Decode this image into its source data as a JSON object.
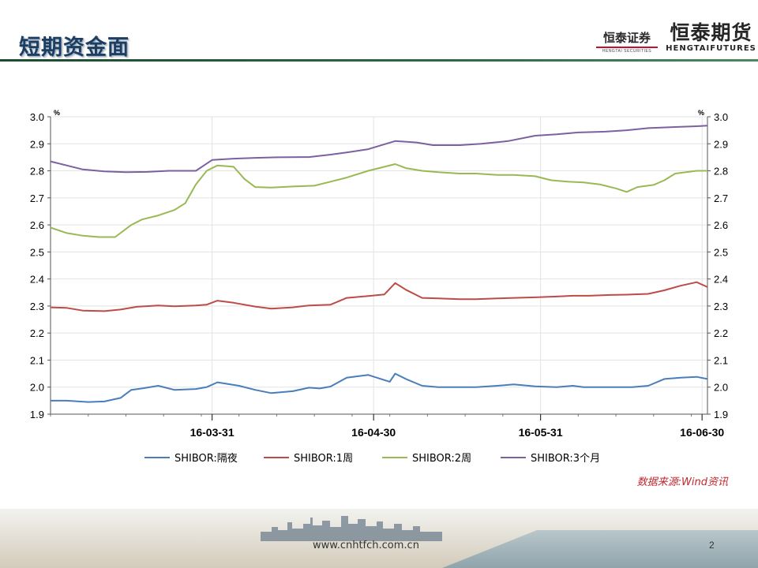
{
  "slide": {
    "title": "短期资金面",
    "logo_securities": "恒泰证券",
    "logo_securities_sub": "HENGTAI SECURITIES",
    "logo_futures": "恒泰期货",
    "logo_futures_sub": "HENGTAIFUTURES",
    "footer_url": "www.cnhtfch.com.cn",
    "page_number": "2",
    "colors": {
      "title": "#1d3e63",
      "rule": "#2d6a43",
      "source_text": "#c0272d"
    }
  },
  "chart_data": {
    "type": "line",
    "unit_left": "%",
    "unit_right": "%",
    "ylim": [
      1.9,
      3.0
    ],
    "yticks": [
      "3.0",
      "2.9",
      "2.8",
      "2.7",
      "2.6",
      "2.5",
      "2.4",
      "2.3",
      "2.2",
      "2.1",
      "2.0",
      "1.9"
    ],
    "x_range": [
      "2016-03-01",
      "2016-07-01"
    ],
    "x_major_ticks": [
      {
        "date": "2016-03-31",
        "label": "16-03-31"
      },
      {
        "date": "2016-04-30",
        "label": "16-04-30"
      },
      {
        "date": "2016-05-31",
        "label": "16-05-31"
      },
      {
        "date": "2016-06-30",
        "label": "16-06-30"
      }
    ],
    "grid": true,
    "legend_position": "bottom",
    "source_note": "数据来源:Wind资讯",
    "series": [
      {
        "name": "SHIBOR:隔夜",
        "color": "#4a7ebb",
        "points": [
          [
            "2016-03-01",
            1.95
          ],
          [
            "2016-03-04",
            1.95
          ],
          [
            "2016-03-08",
            1.945
          ],
          [
            "2016-03-11",
            1.947
          ],
          [
            "2016-03-14",
            1.96
          ],
          [
            "2016-03-16",
            1.99
          ],
          [
            "2016-03-18",
            1.995
          ],
          [
            "2016-03-21",
            2.005
          ],
          [
            "2016-03-24",
            1.99
          ],
          [
            "2016-03-28",
            1.993
          ],
          [
            "2016-03-30",
            2.0
          ],
          [
            "2016-04-01",
            2.018
          ],
          [
            "2016-04-05",
            2.005
          ],
          [
            "2016-04-08",
            1.99
          ],
          [
            "2016-04-11",
            1.978
          ],
          [
            "2016-04-15",
            1.985
          ],
          [
            "2016-04-18",
            1.998
          ],
          [
            "2016-04-20",
            1.995
          ],
          [
            "2016-04-22",
            2.002
          ],
          [
            "2016-04-25",
            2.035
          ],
          [
            "2016-04-27",
            2.04
          ],
          [
            "2016-04-29",
            2.045
          ],
          [
            "2016-05-03",
            2.02
          ],
          [
            "2016-05-04",
            2.05
          ],
          [
            "2016-05-06",
            2.03
          ],
          [
            "2016-05-09",
            2.005
          ],
          [
            "2016-05-12",
            2.0
          ],
          [
            "2016-05-16",
            2.0
          ],
          [
            "2016-05-19",
            2.0
          ],
          [
            "2016-05-23",
            2.005
          ],
          [
            "2016-05-26",
            2.01
          ],
          [
            "2016-05-30",
            2.003
          ],
          [
            "2016-06-03",
            2.0
          ],
          [
            "2016-06-06",
            2.005
          ],
          [
            "2016-06-08",
            2.0
          ],
          [
            "2016-06-13",
            2.0
          ],
          [
            "2016-06-17",
            2.0
          ],
          [
            "2016-06-20",
            2.005
          ],
          [
            "2016-06-23",
            2.03
          ],
          [
            "2016-06-26",
            2.035
          ],
          [
            "2016-06-29",
            2.038
          ],
          [
            "2016-07-01",
            2.03
          ]
        ]
      },
      {
        "name": "SHIBOR:1周",
        "color": "#be4b48",
        "points": [
          [
            "2016-03-01",
            2.295
          ],
          [
            "2016-03-04",
            2.293
          ],
          [
            "2016-03-07",
            2.283
          ],
          [
            "2016-03-11",
            2.281
          ],
          [
            "2016-03-14",
            2.287
          ],
          [
            "2016-03-17",
            2.297
          ],
          [
            "2016-03-21",
            2.302
          ],
          [
            "2016-03-24",
            2.299
          ],
          [
            "2016-03-28",
            2.302
          ],
          [
            "2016-03-30",
            2.305
          ],
          [
            "2016-04-01",
            2.32
          ],
          [
            "2016-04-04",
            2.312
          ],
          [
            "2016-04-08",
            2.298
          ],
          [
            "2016-04-11",
            2.29
          ],
          [
            "2016-04-15",
            2.295
          ],
          [
            "2016-04-18",
            2.302
          ],
          [
            "2016-04-22",
            2.305
          ],
          [
            "2016-04-25",
            2.33
          ],
          [
            "2016-04-29",
            2.337
          ],
          [
            "2016-05-02",
            2.343
          ],
          [
            "2016-05-04",
            2.385
          ],
          [
            "2016-05-06",
            2.36
          ],
          [
            "2016-05-09",
            2.33
          ],
          [
            "2016-05-12",
            2.328
          ],
          [
            "2016-05-16",
            2.325
          ],
          [
            "2016-05-19",
            2.325
          ],
          [
            "2016-05-23",
            2.328
          ],
          [
            "2016-05-26",
            2.33
          ],
          [
            "2016-05-30",
            2.332
          ],
          [
            "2016-06-03",
            2.335
          ],
          [
            "2016-06-06",
            2.338
          ],
          [
            "2016-06-09",
            2.338
          ],
          [
            "2016-06-13",
            2.341
          ],
          [
            "2016-06-16",
            2.342
          ],
          [
            "2016-06-20",
            2.345
          ],
          [
            "2016-06-23",
            2.358
          ],
          [
            "2016-06-26",
            2.375
          ],
          [
            "2016-06-29",
            2.388
          ],
          [
            "2016-07-01",
            2.37
          ]
        ]
      },
      {
        "name": "SHIBOR:2周",
        "color": "#98b954",
        "points": [
          [
            "2016-03-01",
            2.59
          ],
          [
            "2016-03-04",
            2.57
          ],
          [
            "2016-03-07",
            2.56
          ],
          [
            "2016-03-10",
            2.555
          ],
          [
            "2016-03-13",
            2.555
          ],
          [
            "2016-03-16",
            2.6
          ],
          [
            "2016-03-18",
            2.62
          ],
          [
            "2016-03-21",
            2.635
          ],
          [
            "2016-03-24",
            2.655
          ],
          [
            "2016-03-26",
            2.68
          ],
          [
            "2016-03-28",
            2.75
          ],
          [
            "2016-03-30",
            2.8
          ],
          [
            "2016-04-01",
            2.82
          ],
          [
            "2016-04-04",
            2.815
          ],
          [
            "2016-04-06",
            2.77
          ],
          [
            "2016-04-08",
            2.74
          ],
          [
            "2016-04-11",
            2.738
          ],
          [
            "2016-04-15",
            2.742
          ],
          [
            "2016-04-19",
            2.745
          ],
          [
            "2016-04-22",
            2.76
          ],
          [
            "2016-04-25",
            2.775
          ],
          [
            "2016-04-29",
            2.8
          ],
          [
            "2016-05-04",
            2.825
          ],
          [
            "2016-05-06",
            2.81
          ],
          [
            "2016-05-09",
            2.8
          ],
          [
            "2016-05-12",
            2.795
          ],
          [
            "2016-05-16",
            2.79
          ],
          [
            "2016-05-19",
            2.79
          ],
          [
            "2016-05-23",
            2.785
          ],
          [
            "2016-05-26",
            2.785
          ],
          [
            "2016-05-30",
            2.78
          ],
          [
            "2016-06-02",
            2.765
          ],
          [
            "2016-06-05",
            2.76
          ],
          [
            "2016-06-08",
            2.757
          ],
          [
            "2016-06-11",
            2.75
          ],
          [
            "2016-06-14",
            2.735
          ],
          [
            "2016-06-16",
            2.722
          ],
          [
            "2016-06-18",
            2.74
          ],
          [
            "2016-06-21",
            2.748
          ],
          [
            "2016-06-23",
            2.765
          ],
          [
            "2016-06-25",
            2.79
          ],
          [
            "2016-06-27",
            2.795
          ],
          [
            "2016-06-29",
            2.8
          ],
          [
            "2016-07-01",
            2.8
          ]
        ]
      },
      {
        "name": "SHIBOR:3个月",
        "color": "#7d60a0",
        "points": [
          [
            "2016-03-01",
            2.835
          ],
          [
            "2016-03-04",
            2.82
          ],
          [
            "2016-03-07",
            2.805
          ],
          [
            "2016-03-11",
            2.798
          ],
          [
            "2016-03-15",
            2.795
          ],
          [
            "2016-03-19",
            2.796
          ],
          [
            "2016-03-23",
            2.8
          ],
          [
            "2016-03-28",
            2.8
          ],
          [
            "2016-03-31",
            2.84
          ],
          [
            "2016-04-04",
            2.845
          ],
          [
            "2016-04-08",
            2.848
          ],
          [
            "2016-04-12",
            2.85
          ],
          [
            "2016-04-18",
            2.851
          ],
          [
            "2016-04-22",
            2.86
          ],
          [
            "2016-04-25",
            2.868
          ],
          [
            "2016-04-29",
            2.88
          ],
          [
            "2016-05-04",
            2.91
          ],
          [
            "2016-05-08",
            2.905
          ],
          [
            "2016-05-11",
            2.895
          ],
          [
            "2016-05-16",
            2.895
          ],
          [
            "2016-05-20",
            2.9
          ],
          [
            "2016-05-25",
            2.91
          ],
          [
            "2016-05-30",
            2.93
          ],
          [
            "2016-06-03",
            2.935
          ],
          [
            "2016-06-07",
            2.942
          ],
          [
            "2016-06-12",
            2.945
          ],
          [
            "2016-06-16",
            2.95
          ],
          [
            "2016-06-20",
            2.958
          ],
          [
            "2016-06-25",
            2.962
          ],
          [
            "2016-06-29",
            2.965
          ],
          [
            "2016-07-01",
            2.967
          ]
        ]
      }
    ]
  }
}
